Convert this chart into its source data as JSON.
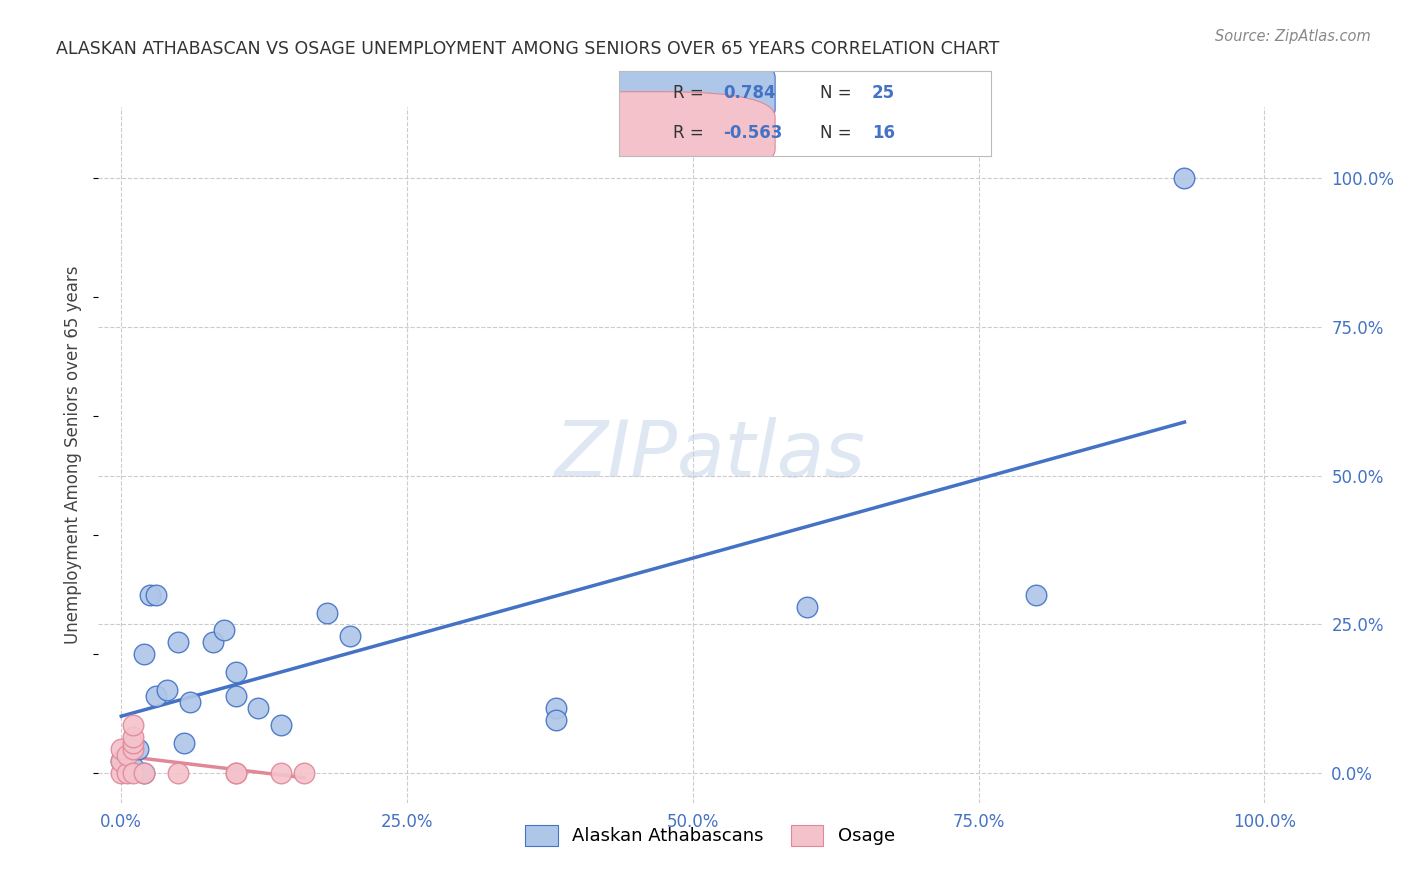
{
  "title": "ALASKAN ATHABASCAN VS OSAGE UNEMPLOYMENT AMONG SENIORS OVER 65 YEARS CORRELATION CHART",
  "source": "Source: ZipAtlas.com",
  "ylabel_label": "Unemployment Among Seniors over 65 years",
  "blue_r": "0.784",
  "blue_n": "25",
  "pink_r": "-0.563",
  "pink_n": "16",
  "blue_fill": "#aec6e8",
  "blue_edge": "#4472C4",
  "pink_fill": "#f4c2cb",
  "pink_edge": "#e08898",
  "blue_line_color": "#4472C4",
  "pink_line_color": "#e08898",
  "axis_label_color": "#4472C4",
  "title_color": "#333333",
  "watermark_color": "#c8d8ea",
  "grid_color": "#cccccc",
  "bg_color": "#ffffff",
  "blue_points_x": [
    0.0,
    0.01,
    0.015,
    0.02,
    0.02,
    0.025,
    0.03,
    0.03,
    0.04,
    0.05,
    0.055,
    0.06,
    0.08,
    0.09,
    0.1,
    0.1,
    0.12,
    0.14,
    0.18,
    0.2,
    0.38,
    0.38,
    0.6,
    0.8,
    0.93
  ],
  "blue_points_y": [
    0.02,
    0.01,
    0.04,
    0.2,
    0.0,
    0.3,
    0.3,
    0.13,
    0.14,
    0.22,
    0.05,
    0.12,
    0.22,
    0.24,
    0.13,
    0.17,
    0.11,
    0.08,
    0.27,
    0.23,
    0.11,
    0.09,
    0.28,
    0.3,
    1.0
  ],
  "pink_points_x": [
    0.0,
    0.0,
    0.0,
    0.005,
    0.005,
    0.01,
    0.01,
    0.01,
    0.01,
    0.01,
    0.02,
    0.05,
    0.1,
    0.1,
    0.14,
    0.16
  ],
  "pink_points_y": [
    0.0,
    0.02,
    0.04,
    0.0,
    0.03,
    0.04,
    0.05,
    0.06,
    0.08,
    0.0,
    0.0,
    0.0,
    0.0,
    0.0,
    0.0,
    0.0
  ],
  "xlim": [
    -0.02,
    1.05
  ],
  "ylim": [
    -0.05,
    1.12
  ],
  "xtick_vals": [
    0.0,
    0.25,
    0.5,
    0.75,
    1.0
  ],
  "xtick_labels": [
    "0.0%",
    "25.0%",
    "50.0%",
    "75.0%",
    "100.0%"
  ],
  "ytick_vals": [
    0.0,
    0.25,
    0.5,
    0.75,
    1.0
  ],
  "ytick_labels": [
    "0.0%",
    "25.0%",
    "50.0%",
    "75.0%",
    "100.0%"
  ],
  "legend_items": [
    "Alaskan Athabascans",
    "Osage"
  ]
}
